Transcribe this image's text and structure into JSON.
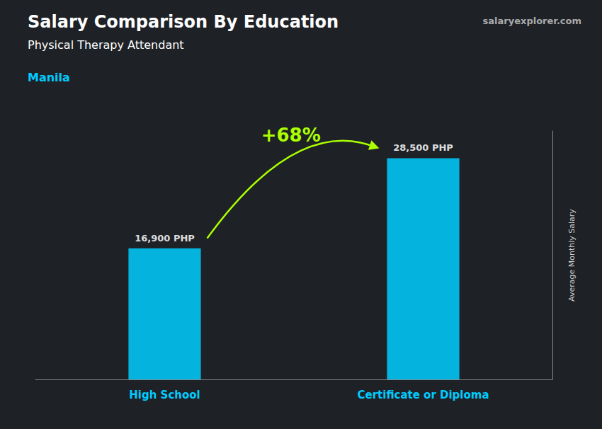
{
  "chart_data": {
    "type": "bar",
    "title": "Salary Comparison By Education",
    "subtitle": "Physical Therapy Attendant",
    "annotations": [
      "Manila",
      "+68%",
      "salaryexplorer.com"
    ],
    "categories": [
      "High School",
      "Certificate or Diploma"
    ],
    "values": [
      16900,
      28500
    ],
    "value_labels": [
      "16,900 PHP",
      "28,500 PHP"
    ],
    "data_labels": true,
    "ylabel": "Average Monthly Salary",
    "color": "#00CCFF",
    "ylim": [
      0,
      32000
    ],
    "tick_labels": false,
    "grid": false
  }
}
